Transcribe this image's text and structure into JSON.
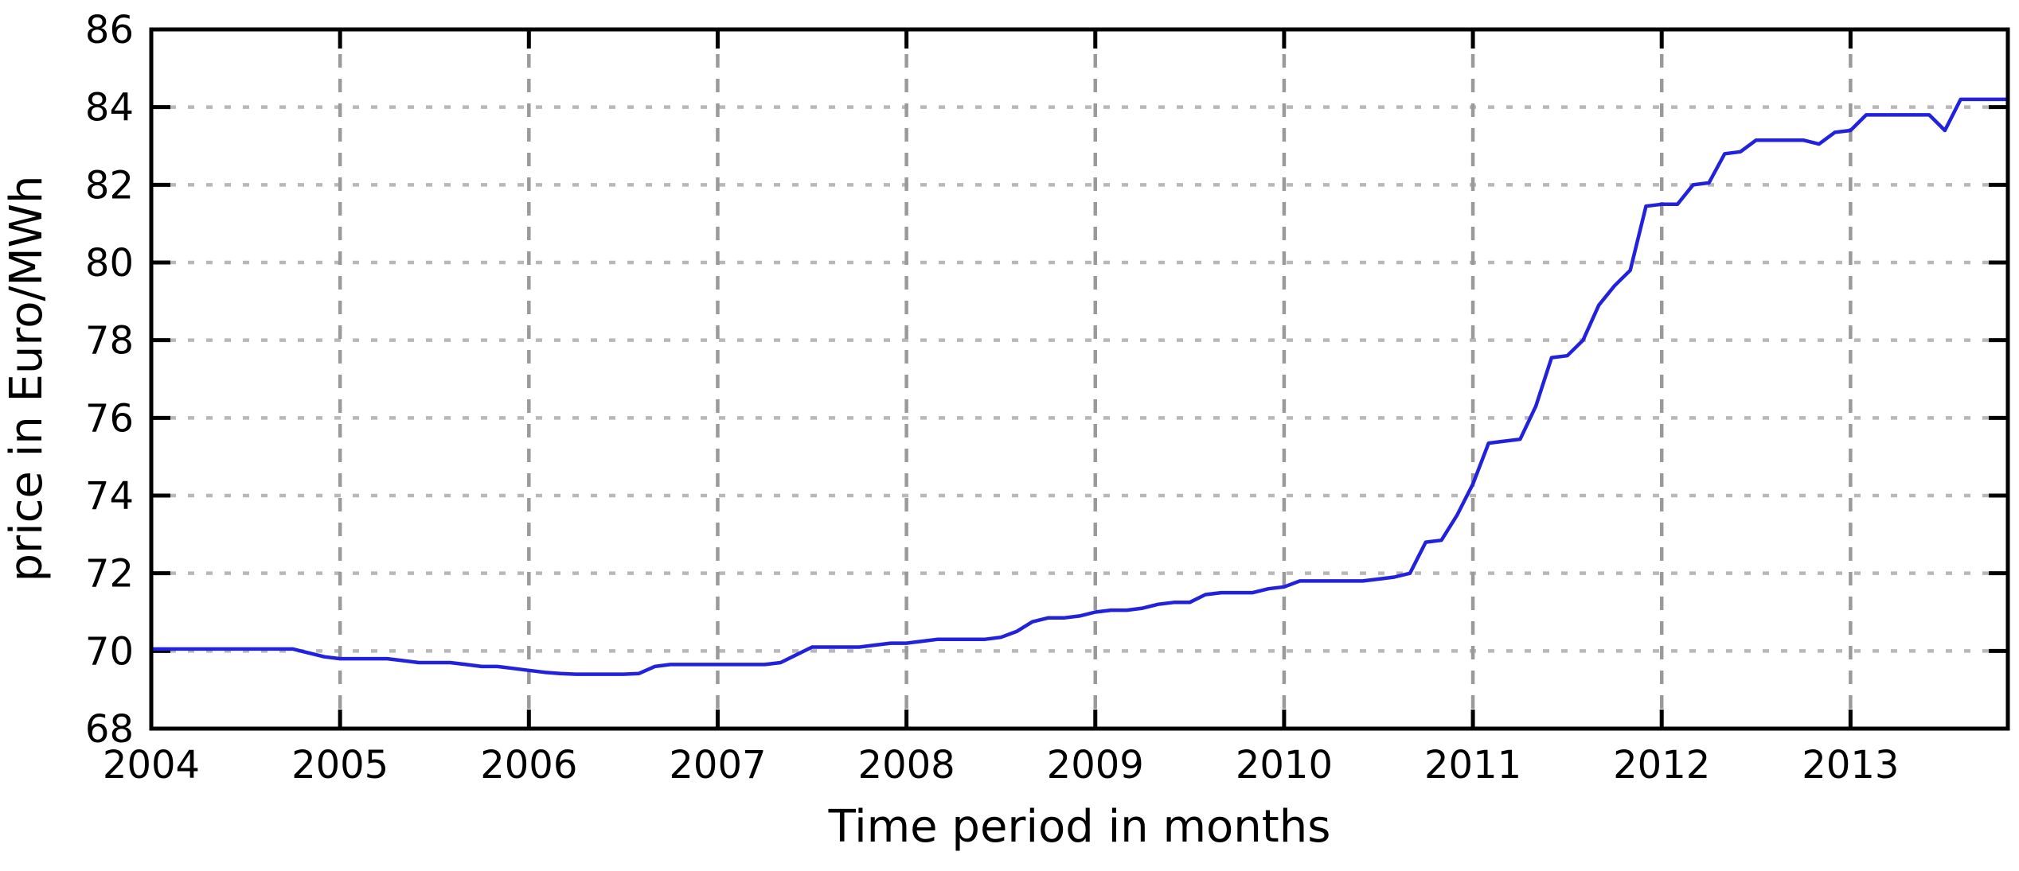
{
  "chart_data": {
    "type": "line",
    "title": "",
    "xlabel": "Time period in months",
    "ylabel": "price in Euro/MWh",
    "x_tick_labels": [
      "2004",
      "2005",
      "2006",
      "2007",
      "2008",
      "2009",
      "2010",
      "2011",
      "2012",
      "2013"
    ],
    "y_tick_labels": [
      "68",
      "70",
      "72",
      "74",
      "76",
      "78",
      "80",
      "82",
      "84",
      "86"
    ],
    "y_ticks": [
      68,
      70,
      72,
      74,
      76,
      78,
      80,
      82,
      84,
      86
    ],
    "ylim": [
      68,
      86
    ],
    "x_range": "monthly from Jan 2004 to Nov 2013",
    "grid": "dashed, on",
    "legend_position": "none",
    "colors": {
      "line": "#2222dd",
      "grid_horizontal": "#b8b8b8",
      "grid_vertical": "#9a9a9a",
      "axis": "#000000",
      "background": "#ffffff"
    },
    "series": [
      {
        "name": "price",
        "start_month": "2004-01",
        "values_by_year": {
          "2004": [
            70.05,
            70.05,
            70.05,
            70.05,
            70.05,
            70.05,
            70.05,
            70.05,
            70.05,
            70.05,
            69.95,
            69.85
          ],
          "2005": [
            69.8,
            69.8,
            69.8,
            69.8,
            69.75,
            69.7,
            69.7,
            69.7,
            69.65,
            69.6,
            69.6,
            69.55
          ],
          "2006": [
            69.5,
            69.45,
            69.42,
            69.4,
            69.4,
            69.4,
            69.4,
            69.42,
            69.6,
            69.65,
            69.65,
            69.65
          ],
          "2007": [
            69.65,
            69.65,
            69.65,
            69.65,
            69.7,
            69.9,
            70.1,
            70.1,
            70.1,
            70.1,
            70.15,
            70.2
          ],
          "2008": [
            70.2,
            70.25,
            70.3,
            70.3,
            70.3,
            70.3,
            70.35,
            70.5,
            70.75,
            70.85,
            70.85,
            70.9
          ],
          "2009": [
            71.0,
            71.05,
            71.05,
            71.1,
            71.2,
            71.25,
            71.25,
            71.45,
            71.5,
            71.5,
            71.5,
            71.6
          ],
          "2010": [
            71.65,
            71.8,
            71.8,
            71.8,
            71.8,
            71.8,
            71.85,
            71.9,
            72.0,
            72.8,
            72.85,
            73.5
          ],
          "2011": [
            74.3,
            75.35,
            75.4,
            75.45,
            76.3,
            77.55,
            77.6,
            78.0,
            78.9,
            79.4,
            79.8,
            81.45
          ],
          "2012": [
            81.5,
            81.5,
            82.0,
            82.05,
            82.8,
            82.85,
            83.15,
            83.15,
            83.15,
            83.15,
            83.05,
            83.35
          ],
          "2013": [
            83.4,
            83.8,
            83.8,
            83.8,
            83.8,
            83.8,
            83.4,
            84.2,
            84.2,
            84.2,
            84.2
          ]
        }
      }
    ]
  }
}
